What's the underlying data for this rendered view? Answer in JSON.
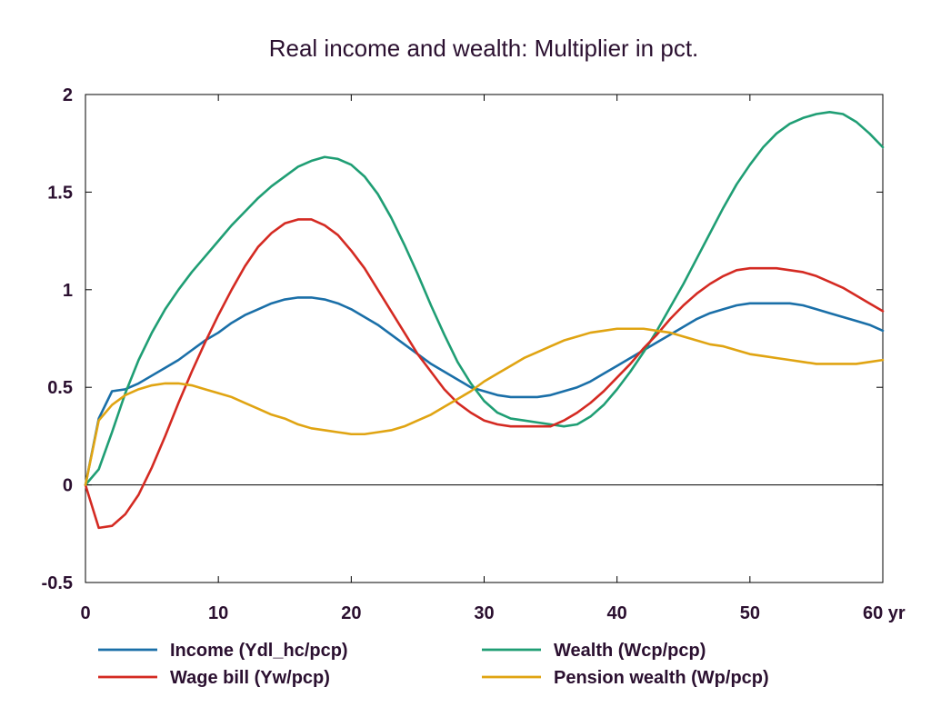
{
  "chart_data": {
    "type": "line",
    "title": "Real income and wealth: Multiplier in pct.",
    "xlabel": "",
    "ylabel": "",
    "x_unit": "yr",
    "xlim": [
      0,
      60
    ],
    "ylim": [
      -0.5,
      2
    ],
    "x_ticks": [
      0,
      10,
      20,
      30,
      40,
      50,
      60
    ],
    "x_tick_labels": [
      "0",
      "10",
      "20",
      "30",
      "40",
      "50",
      "60 yr"
    ],
    "y_ticks": [
      -0.5,
      0,
      0.5,
      1,
      1.5,
      2
    ],
    "y_tick_labels": [
      "-0.5",
      "0",
      "0.5",
      "1",
      "1.5",
      "2"
    ],
    "grid": false,
    "zero_line": true,
    "legend_position": "bottom",
    "x": [
      0,
      1,
      2,
      3,
      4,
      5,
      6,
      7,
      8,
      9,
      10,
      11,
      12,
      13,
      14,
      15,
      16,
      17,
      18,
      19,
      20,
      21,
      22,
      23,
      24,
      25,
      26,
      27,
      28,
      29,
      30,
      31,
      32,
      33,
      34,
      35,
      36,
      37,
      38,
      39,
      40,
      41,
      42,
      43,
      44,
      45,
      46,
      47,
      48,
      49,
      50,
      51,
      52,
      53,
      54,
      55,
      56,
      57,
      58,
      59,
      60
    ],
    "series": [
      {
        "name": "Income (Ydl_hc/pcp)",
        "color": "#1a6fa8",
        "values": [
          0,
          0.34,
          0.48,
          0.49,
          0.52,
          0.56,
          0.6,
          0.64,
          0.69,
          0.74,
          0.78,
          0.83,
          0.87,
          0.9,
          0.93,
          0.95,
          0.96,
          0.96,
          0.95,
          0.93,
          0.9,
          0.86,
          0.82,
          0.77,
          0.72,
          0.67,
          0.62,
          0.58,
          0.54,
          0.5,
          0.48,
          0.46,
          0.45,
          0.45,
          0.45,
          0.46,
          0.48,
          0.5,
          0.53,
          0.57,
          0.61,
          0.65,
          0.69,
          0.73,
          0.77,
          0.81,
          0.85,
          0.88,
          0.9,
          0.92,
          0.93,
          0.93,
          0.93,
          0.93,
          0.92,
          0.9,
          0.88,
          0.86,
          0.84,
          0.82,
          0.79
        ]
      },
      {
        "name": "Wealth (Wcp/pcp)",
        "color": "#1f9e74",
        "values": [
          0,
          0.08,
          0.27,
          0.47,
          0.64,
          0.78,
          0.9,
          1.0,
          1.09,
          1.17,
          1.25,
          1.33,
          1.4,
          1.47,
          1.53,
          1.58,
          1.63,
          1.66,
          1.68,
          1.67,
          1.64,
          1.58,
          1.49,
          1.37,
          1.23,
          1.08,
          0.92,
          0.77,
          0.63,
          0.52,
          0.43,
          0.37,
          0.34,
          0.33,
          0.32,
          0.31,
          0.3,
          0.31,
          0.35,
          0.41,
          0.49,
          0.58,
          0.68,
          0.79,
          0.91,
          1.03,
          1.16,
          1.29,
          1.42,
          1.54,
          1.64,
          1.73,
          1.8,
          1.85,
          1.88,
          1.9,
          1.91,
          1.9,
          1.86,
          1.8,
          1.73
        ]
      },
      {
        "name": "Wage bill (Yw/pcp)",
        "color": "#d42a22",
        "values": [
          0,
          -0.22,
          -0.21,
          -0.15,
          -0.05,
          0.09,
          0.25,
          0.42,
          0.58,
          0.73,
          0.87,
          1.0,
          1.12,
          1.22,
          1.29,
          1.34,
          1.36,
          1.36,
          1.33,
          1.28,
          1.2,
          1.11,
          1.0,
          0.89,
          0.78,
          0.67,
          0.58,
          0.49,
          0.42,
          0.37,
          0.33,
          0.31,
          0.3,
          0.3,
          0.3,
          0.3,
          0.33,
          0.37,
          0.42,
          0.48,
          0.55,
          0.62,
          0.7,
          0.77,
          0.85,
          0.92,
          0.98,
          1.03,
          1.07,
          1.1,
          1.11,
          1.11,
          1.11,
          1.1,
          1.09,
          1.07,
          1.04,
          1.01,
          0.97,
          0.93,
          0.89
        ]
      },
      {
        "name": "Pension wealth (Wp/pcp)",
        "color": "#e0a412",
        "values": [
          0,
          0.33,
          0.41,
          0.46,
          0.49,
          0.51,
          0.52,
          0.52,
          0.51,
          0.49,
          0.47,
          0.45,
          0.42,
          0.39,
          0.36,
          0.34,
          0.31,
          0.29,
          0.28,
          0.27,
          0.26,
          0.26,
          0.27,
          0.28,
          0.3,
          0.33,
          0.36,
          0.4,
          0.44,
          0.48,
          0.53,
          0.57,
          0.61,
          0.65,
          0.68,
          0.71,
          0.74,
          0.76,
          0.78,
          0.79,
          0.8,
          0.8,
          0.8,
          0.79,
          0.78,
          0.76,
          0.74,
          0.72,
          0.71,
          0.69,
          0.67,
          0.66,
          0.65,
          0.64,
          0.63,
          0.62,
          0.62,
          0.62,
          0.62,
          0.63,
          0.64
        ]
      }
    ]
  }
}
